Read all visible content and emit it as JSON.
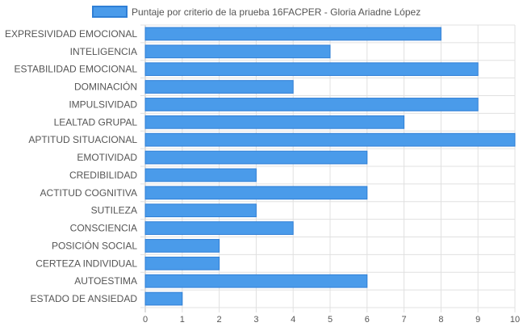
{
  "chart_data": {
    "type": "bar",
    "orientation": "horizontal",
    "categories": [
      "EXPRESIVIDAD EMOCIONAL",
      "INTELIGENCIA",
      "ESTABILIDAD EMOCIONAL",
      "DOMINACIÓN",
      "IMPULSIVIDAD",
      "LEALTAD GRUPAL",
      "APTITUD SITUACIONAL",
      "EMOTIVIDAD",
      "CREDIBILIDAD",
      "ACTITUD COGNITIVA",
      "SUTILEZA",
      "CONSCIENCIA",
      "POSICIÓN SOCIAL",
      "CERTEZA INDIVIDUAL",
      "AUTOESTIMA",
      "ESTADO DE ANSIEDAD"
    ],
    "series": [
      {
        "name": "Puntaje por criterio de la prueba 16FACPER - Gloria Ariadne López",
        "values": [
          8,
          5,
          9,
          4,
          9,
          7,
          10,
          6,
          3,
          6,
          3,
          4,
          2,
          2,
          6,
          1
        ],
        "color": "#4a9bea",
        "border_color": "#2f7fd6"
      }
    ],
    "xlim": [
      0,
      10
    ],
    "x_ticks": [
      0,
      1,
      2,
      3,
      4,
      5,
      6,
      7,
      8,
      9,
      10
    ],
    "grid": true,
    "legend_position": "top"
  }
}
